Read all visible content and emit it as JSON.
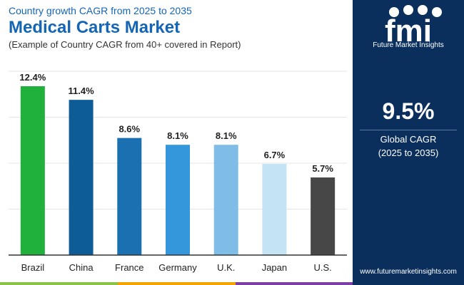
{
  "header": {
    "subtitle_top": "Country growth CAGR from 2025 to 2035",
    "title": "Medical Carts Market",
    "note": "(Example of Country CAGR from 40+ covered in Report)"
  },
  "chart_data": {
    "type": "bar",
    "categories": [
      "Brazil",
      "China",
      "France",
      "Germany",
      "U.K.",
      "Japan",
      "U.S."
    ],
    "values": [
      12.4,
      11.4,
      8.6,
      8.1,
      8.1,
      6.7,
      5.7
    ],
    "value_labels": [
      "12.4%",
      "11.4%",
      "8.6%",
      "8.1%",
      "8.1%",
      "6.7%",
      "5.7%"
    ],
    "colors": [
      "#1fb13b",
      "#0d5c98",
      "#1a70b0",
      "#3497dc",
      "#7fbde6",
      "#c4e3f5",
      "#474747"
    ],
    "ylim": [
      0,
      13.5
    ],
    "grid": true
  },
  "panel": {
    "logo_letters": "fmi",
    "logo_text": "Future Market Insights",
    "cagr_value": "9.5%",
    "cagr_label": "Global CAGR",
    "cagr_period": "(2025 to 2035)",
    "url": "www.futuremarketinsights.com",
    "background": "#0b2f5c"
  },
  "stripe_colors": [
    "#8bc34a",
    "#f4a300",
    "#7b3fa6"
  ]
}
